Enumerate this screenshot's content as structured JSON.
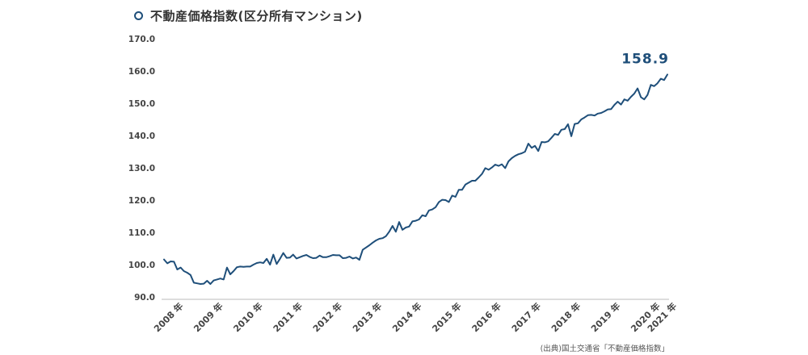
{
  "chart_data": {
    "type": "line",
    "title": "不動産価格指数(区分所有マンション)",
    "xlabel": "",
    "ylabel": "",
    "ylim": [
      90,
      170
    ],
    "yticks": [
      "90.0",
      "100.0",
      "110.0",
      "120.0",
      "130.0",
      "140.0",
      "150.0",
      "160.0",
      "170.0"
    ],
    "xticks": [
      "2008 年",
      "2009 年",
      "2010 年",
      "2011 年",
      "2012 年",
      "2013 年",
      "2014 年",
      "2015 年",
      "2016 年",
      "2017 年",
      "2018 年",
      "2019 年",
      "2020 年",
      "2021 年"
    ],
    "x_start": "2008-04",
    "grid": false,
    "line_color": "#1f4f7a",
    "end_label": "158.9",
    "series": [
      {
        "name": "",
        "values": [
          101.6,
          100.4,
          101.0,
          100.9,
          98.5,
          99.1,
          98.0,
          97.5,
          96.8,
          94.4,
          94.2,
          94.0,
          94.1,
          95.0,
          94.0,
          95.1,
          95.4,
          95.7,
          95.4,
          99.1,
          97.0,
          98.0,
          99.2,
          99.4,
          99.3,
          99.4,
          99.4,
          100.0,
          100.5,
          100.7,
          100.5,
          101.8,
          100.0,
          103.1,
          100.2,
          101.8,
          103.6,
          102.1,
          102.2,
          103.1,
          101.9,
          102.3,
          102.7,
          103.0,
          102.4,
          102.0,
          102.1,
          102.8,
          102.3,
          102.3,
          102.6,
          103.0,
          102.9,
          102.9,
          102.0,
          102.1,
          102.5,
          101.9,
          102.2,
          101.5,
          104.6,
          105.3,
          106.0,
          106.8,
          107.5,
          108.0,
          108.2,
          108.8,
          110.2,
          112.0,
          110.2,
          113.2,
          110.8,
          111.5,
          111.8,
          113.4,
          113.6,
          114.0,
          115.3,
          115.0,
          116.8,
          117.1,
          117.8,
          119.4,
          120.1,
          120.0,
          119.4,
          121.4,
          121.0,
          123.2,
          123.2,
          124.8,
          125.4,
          126.0,
          126.0,
          127.0,
          128.1,
          129.9,
          129.4,
          130.1,
          131.0,
          130.6,
          131.1,
          129.9,
          132.0,
          133.0,
          133.7,
          134.2,
          134.5,
          135.0,
          137.5,
          136.2,
          136.8,
          135.2,
          138.0,
          137.9,
          138.2,
          139.3,
          140.5,
          140.2,
          141.8,
          142.0,
          143.5,
          139.8,
          143.6,
          143.8,
          145.0,
          145.6,
          146.3,
          146.4,
          146.2,
          146.8,
          147.0,
          147.5,
          148.1,
          148.2,
          149.5,
          150.5,
          149.6,
          151.2,
          150.8,
          152.0,
          153.0,
          154.6,
          151.9,
          151.2,
          152.6,
          155.7,
          155.3,
          156.2,
          157.6,
          157.2,
          158.9
        ]
      }
    ]
  },
  "source_text": "(出典)国土交通省「不動産価格指数」"
}
